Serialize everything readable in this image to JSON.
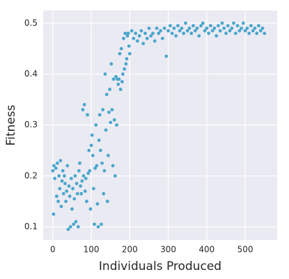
{
  "chart_data": {
    "type": "scatter",
    "xlabel": "Individuals Produced",
    "ylabel": "Fitness",
    "color": "#4aa6cc",
    "grid": true,
    "xlim": [
      -25,
      583
    ],
    "ylim": [
      0.074,
      0.525
    ],
    "xticks": [
      0,
      100,
      200,
      300,
      400,
      500
    ],
    "yticks": [
      0.1,
      0.2,
      0.3,
      0.4,
      0.5
    ],
    "x": [
      0,
      2,
      3,
      5,
      8,
      10,
      12,
      14,
      16,
      18,
      20,
      22,
      24,
      26,
      28,
      30,
      32,
      34,
      36,
      38,
      40,
      42,
      44,
      46,
      48,
      50,
      52,
      54,
      56,
      58,
      60,
      62,
      64,
      66,
      68,
      70,
      72,
      74,
      76,
      78,
      80,
      82,
      84,
      86,
      88,
      90,
      92,
      94,
      96,
      98,
      100,
      102,
      104,
      106,
      108,
      110,
      112,
      114,
      116,
      118,
      120,
      122,
      124,
      126,
      128,
      130,
      132,
      134,
      136,
      138,
      140,
      142,
      144,
      146,
      148,
      150,
      152,
      154,
      156,
      158,
      160,
      162,
      164,
      166,
      168,
      170,
      172,
      174,
      176,
      178,
      180,
      182,
      184,
      186,
      188,
      190,
      192,
      194,
      196,
      198,
      200,
      205,
      210,
      215,
      220,
      225,
      230,
      235,
      240,
      245,
      250,
      255,
      260,
      265,
      270,
      275,
      280,
      285,
      290,
      295,
      300,
      305,
      310,
      315,
      320,
      325,
      330,
      335,
      340,
      345,
      350,
      355,
      360,
      365,
      370,
      375,
      380,
      385,
      390,
      395,
      400,
      405,
      410,
      415,
      420,
      425,
      430,
      435,
      440,
      445,
      450,
      455,
      460,
      465,
      470,
      475,
      480,
      485,
      490,
      495,
      500,
      505,
      510,
      515,
      520,
      525,
      530,
      535,
      540,
      545,
      550
    ],
    "values": [
      0.21,
      0.125,
      0.22,
      0.195,
      0.215,
      0.16,
      0.225,
      0.15,
      0.2,
      0.175,
      0.23,
      0.14,
      0.19,
      0.21,
      0.165,
      0.2,
      0.185,
      0.15,
      0.17,
      0.22,
      0.095,
      0.18,
      0.16,
      0.1,
      0.195,
      0.135,
      0.175,
      0.105,
      0.155,
      0.2,
      0.11,
      0.185,
      0.165,
      0.1,
      0.21,
      0.225,
      0.18,
      0.165,
      0.19,
      0.33,
      0.2,
      0.34,
      0.17,
      0.195,
      0.15,
      0.32,
      0.205,
      0.25,
      0.21,
      0.135,
      0.26,
      0.28,
      0.24,
      0.175,
      0.105,
      0.215,
      0.3,
      0.22,
      0.145,
      0.1,
      0.27,
      0.32,
      0.25,
      0.105,
      0.225,
      0.33,
      0.165,
      0.21,
      0.4,
      0.29,
      0.36,
      0.15,
      0.24,
      0.325,
      0.37,
      0.305,
      0.42,
      0.33,
      0.22,
      0.39,
      0.31,
      0.2,
      0.395,
      0.3,
      0.39,
      0.38,
      0.39,
      0.44,
      0.37,
      0.45,
      0.385,
      0.4,
      0.47,
      0.41,
      0.48,
      0.42,
      0.43,
      0.475,
      0.48,
      0.455,
      0.44,
      0.485,
      0.47,
      0.48,
      0.465,
      0.475,
      0.485,
      0.46,
      0.48,
      0.47,
      0.49,
      0.475,
      0.48,
      0.465,
      0.49,
      0.48,
      0.485,
      0.47,
      0.49,
      0.435,
      0.485,
      0.495,
      0.48,
      0.49,
      0.475,
      0.495,
      0.485,
      0.49,
      0.48,
      0.5,
      0.485,
      0.49,
      0.48,
      0.495,
      0.485,
      0.49,
      0.475,
      0.495,
      0.5,
      0.485,
      0.49,
      0.48,
      0.495,
      0.485,
      0.49,
      0.475,
      0.495,
      0.485,
      0.5,
      0.49,
      0.48,
      0.495,
      0.485,
      0.49,
      0.5,
      0.48,
      0.495,
      0.485,
      0.49,
      0.5,
      0.485,
      0.49,
      0.48,
      0.495,
      0.485,
      0.49,
      0.48,
      0.495,
      0.485,
      0.49,
      0.48
    ]
  }
}
